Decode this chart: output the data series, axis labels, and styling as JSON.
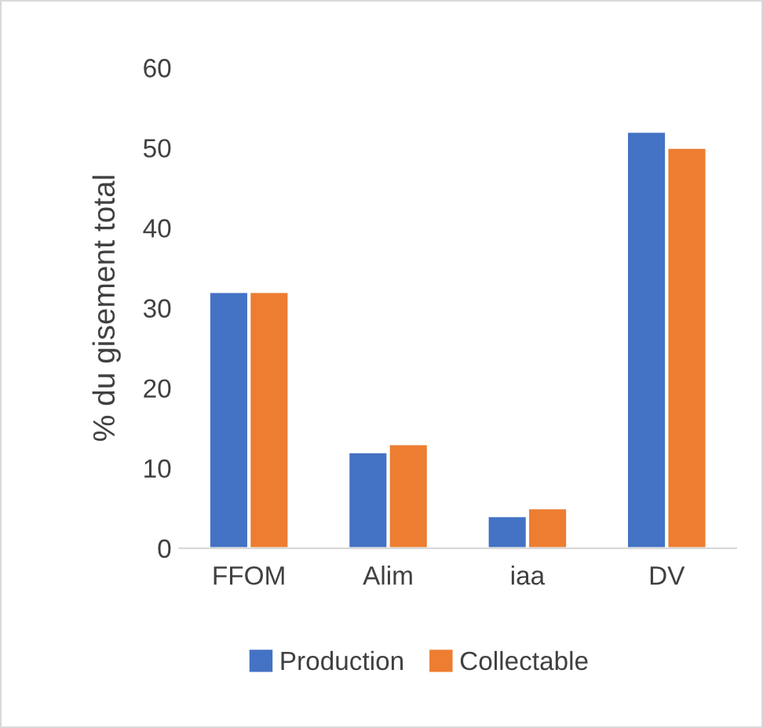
{
  "chart_data": {
    "type": "bar",
    "ylabel": "% du gisement total",
    "categories": [
      "FFOM",
      "Alim",
      "iaa",
      "DV"
    ],
    "series": [
      {
        "name": "Production",
        "color": "#4472c4",
        "values": [
          32,
          12,
          4,
          52
        ]
      },
      {
        "name": "Collectable",
        "color": "#ed7d31",
        "values": [
          32,
          13,
          5,
          50
        ]
      }
    ],
    "ylim": [
      0,
      60
    ],
    "yticks": [
      0,
      10,
      20,
      30,
      40,
      50,
      60
    ],
    "grid": false,
    "legend": "bottom"
  }
}
